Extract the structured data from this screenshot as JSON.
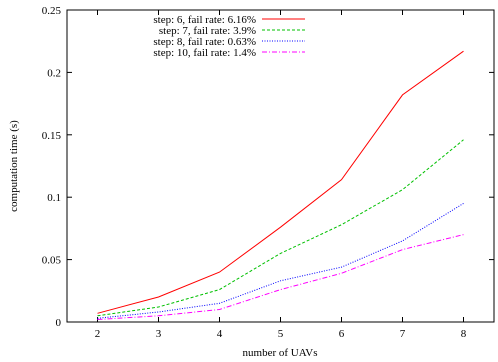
{
  "chart_data": {
    "type": "line",
    "xlabel": "number of UAVs",
    "ylabel": "computation time (s)",
    "x": [
      2,
      3,
      4,
      5,
      6,
      7,
      8
    ],
    "xlim": [
      1.5,
      8.5
    ],
    "ylim": [
      0,
      0.25
    ],
    "xticks": [
      "2",
      "3",
      "4",
      "5",
      "6",
      "7",
      "8"
    ],
    "yticks": [
      "0",
      "0.05",
      "0.1",
      "0.15",
      "0.2",
      "0.25"
    ],
    "ytick_values": [
      0,
      0.05,
      0.1,
      0.15,
      0.2,
      0.25
    ],
    "grid": false,
    "legend_position": "top-left",
    "series": [
      {
        "name": "step: 6, fail rate: 6.16%",
        "color": "#ff0000",
        "dash": "solid",
        "values": [
          0.007,
          0.02,
          0.04,
          0.076,
          0.114,
          0.182,
          0.217
        ]
      },
      {
        "name": "step: 7, fail rate: 3.9%",
        "color": "#00c000",
        "dash": "dashed",
        "values": [
          0.005,
          0.012,
          0.026,
          0.055,
          0.078,
          0.106,
          0.146
        ]
      },
      {
        "name": "step: 8, fail rate: 0.63%",
        "color": "#0000ff",
        "dash": "dotted",
        "values": [
          0.003,
          0.008,
          0.015,
          0.033,
          0.044,
          0.065,
          0.095
        ]
      },
      {
        "name": "step: 10, fail rate: 1.4%",
        "color": "#ff00ff",
        "dash": "dashdot",
        "values": [
          0.002,
          0.005,
          0.01,
          0.026,
          0.039,
          0.058,
          0.07
        ]
      }
    ]
  }
}
